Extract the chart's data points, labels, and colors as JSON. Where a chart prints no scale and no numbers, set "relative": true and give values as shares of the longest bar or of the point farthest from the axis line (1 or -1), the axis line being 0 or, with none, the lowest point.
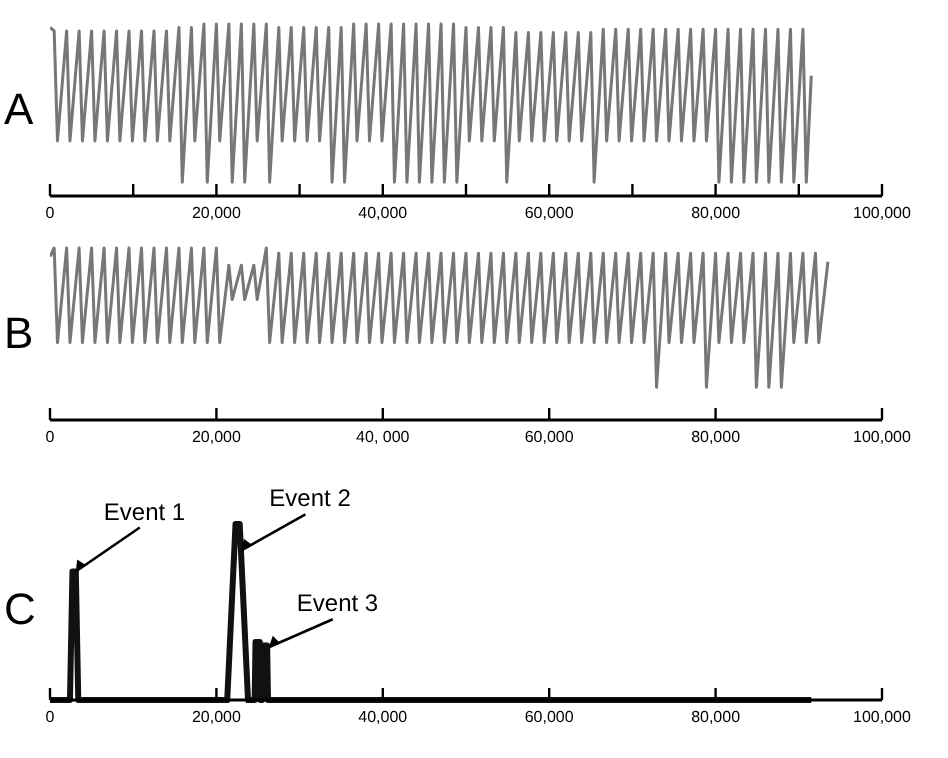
{
  "chart_data": [
    {
      "type": "line",
      "title": "A",
      "relative": true,
      "color": "#777777",
      "x": [
        0,
        500,
        900,
        2000,
        2400,
        3500,
        3900,
        5000,
        5400,
        6500,
        6900,
        8000,
        8400,
        9500,
        9900,
        11000,
        11400,
        12500,
        12900,
        14000,
        14400,
        15500,
        15900,
        17000,
        17400,
        18500,
        18900,
        20000,
        20400,
        21500,
        21900,
        23000,
        23400,
        24500,
        24900,
        26000,
        26400,
        27500,
        27900,
        29000,
        29400,
        30500,
        30900,
        32000,
        32400,
        33500,
        33900,
        35000,
        35400,
        36500,
        36900,
        38000,
        38400,
        39500,
        39900,
        41000,
        41400,
        42500,
        42900,
        44000,
        44400,
        45500,
        45900,
        47000,
        47400,
        48500,
        48900,
        50000,
        50400,
        51500,
        51900,
        53000,
        53400,
        54500,
        54900,
        56000,
        56400,
        57500,
        57900,
        59000,
        59400,
        60500,
        60900,
        62000,
        62400,
        63500,
        63900,
        65000,
        65400,
        66500,
        66900,
        68000,
        68400,
        69500,
        69900,
        71000,
        71400,
        72500,
        72900,
        74000,
        74400,
        75500,
        75900,
        77000,
        77400,
        78500,
        78900,
        80000,
        80400,
        81500,
        81900,
        83000,
        83400,
        84500,
        84900,
        86000,
        86400,
        87500,
        87900,
        89000,
        89400,
        90500,
        90900,
        91500
      ],
      "values": [
        0.98,
        0.96,
        0.32,
        0.96,
        0.32,
        0.96,
        0.32,
        0.96,
        0.32,
        0.96,
        0.32,
        0.96,
        0.32,
        0.96,
        0.32,
        0.96,
        0.32,
        0.96,
        0.32,
        0.96,
        0.32,
        0.98,
        0.08,
        0.98,
        0.32,
        1,
        0.08,
        1,
        0.32,
        1,
        0.08,
        1,
        0.08,
        1,
        0.32,
        1,
        0.08,
        0.98,
        0.32,
        0.98,
        0.32,
        0.98,
        0.32,
        0.98,
        0.32,
        0.98,
        0.08,
        0.98,
        0.08,
        1,
        0.32,
        1,
        0.32,
        1,
        0.32,
        1,
        0.08,
        1,
        0.08,
        1,
        0.08,
        1,
        0.08,
        1,
        0.08,
        1,
        0.08,
        0.98,
        0.32,
        0.98,
        0.32,
        0.98,
        0.32,
        0.98,
        0.08,
        0.95,
        0.32,
        0.95,
        0.32,
        0.95,
        0.32,
        0.95,
        0.32,
        0.95,
        0.32,
        0.95,
        0.32,
        0.95,
        0.08,
        0.97,
        0.32,
        0.97,
        0.32,
        0.97,
        0.32,
        0.97,
        0.32,
        0.97,
        0.32,
        0.97,
        0.32,
        0.97,
        0.32,
        0.97,
        0.32,
        0.97,
        0.32,
        0.97,
        0.08,
        0.97,
        0.08,
        0.97,
        0.08,
        0.97,
        0.08,
        0.97,
        0.08,
        0.97,
        0.08,
        0.97,
        0.08,
        0.97,
        0.08,
        0.7
      ],
      "xlim": [
        0,
        100000
      ],
      "xticks": [
        {
          "value": 0,
          "label": "0"
        },
        {
          "value": 10000,
          "label": null
        },
        {
          "value": 20000,
          "label": "20,000"
        },
        {
          "value": 30000,
          "label": null
        },
        {
          "value": 40000,
          "label": "40,000"
        },
        {
          "value": 50000,
          "label": null
        },
        {
          "value": 60000,
          "label": "60,000"
        },
        {
          "value": 70000,
          "label": null
        },
        {
          "value": 80000,
          "label": "80,000"
        },
        {
          "value": 90000,
          "label": null
        },
        {
          "value": 100000,
          "label": "100,000"
        }
      ]
    },
    {
      "type": "line",
      "title": "B",
      "relative": true,
      "color": "#777777",
      "x": [
        0,
        500,
        900,
        2000,
        2400,
        3500,
        3900,
        5000,
        5400,
        6500,
        6900,
        8000,
        8400,
        9500,
        9900,
        11000,
        11400,
        12500,
        12900,
        14000,
        14400,
        15500,
        15900,
        17000,
        17400,
        18500,
        18900,
        20000,
        20400,
        21500,
        21900,
        23000,
        23400,
        24500,
        24900,
        26000,
        26400,
        27500,
        27900,
        29000,
        29400,
        30500,
        30900,
        32000,
        32400,
        33500,
        33900,
        35000,
        35400,
        36500,
        36900,
        38000,
        38400,
        39500,
        39900,
        41000,
        41400,
        42500,
        42900,
        44000,
        44400,
        45500,
        45900,
        47000,
        47400,
        48500,
        48900,
        50000,
        50400,
        51500,
        51900,
        53000,
        53400,
        54500,
        54900,
        56000,
        56400,
        57500,
        57900,
        59000,
        59400,
        60500,
        60900,
        62000,
        62400,
        63500,
        63900,
        65000,
        65400,
        66500,
        66900,
        68000,
        68400,
        69500,
        69900,
        71000,
        71400,
        72500,
        72900,
        74000,
        74400,
        75500,
        75900,
        77000,
        77400,
        78500,
        78900,
        80000,
        80400,
        81500,
        81900,
        83000,
        83400,
        84500,
        84900,
        86000,
        86400,
        87500,
        87900,
        89000,
        89400,
        90500,
        90900,
        92000,
        92400,
        93500
      ],
      "values": [
        0.95,
        1,
        0.45,
        1,
        0.45,
        1,
        0.45,
        1,
        0.45,
        1,
        0.45,
        1,
        0.45,
        1,
        0.45,
        1,
        0.45,
        1,
        0.45,
        1,
        0.45,
        1,
        0.45,
        1,
        0.45,
        1,
        0.45,
        1,
        0.45,
        0.9,
        0.7,
        0.9,
        0.7,
        0.9,
        0.7,
        1,
        0.45,
        0.97,
        0.45,
        0.97,
        0.45,
        0.97,
        0.45,
        0.97,
        0.45,
        0.97,
        0.45,
        0.97,
        0.45,
        0.97,
        0.45,
        0.97,
        0.45,
        0.97,
        0.45,
        0.97,
        0.45,
        0.97,
        0.45,
        0.97,
        0.45,
        0.97,
        0.45,
        0.97,
        0.45,
        0.97,
        0.45,
        0.97,
        0.45,
        0.97,
        0.45,
        0.97,
        0.45,
        0.97,
        0.45,
        0.97,
        0.45,
        0.97,
        0.45,
        0.97,
        0.45,
        0.97,
        0.45,
        0.97,
        0.45,
        0.97,
        0.45,
        0.97,
        0.45,
        0.97,
        0.45,
        0.97,
        0.45,
        0.97,
        0.45,
        0.97,
        0.45,
        0.97,
        0.19,
        0.97,
        0.45,
        0.97,
        0.45,
        0.97,
        0.45,
        0.97,
        0.19,
        0.97,
        0.45,
        0.97,
        0.45,
        0.97,
        0.45,
        0.97,
        0.19,
        0.97,
        0.19,
        0.97,
        0.19,
        0.97,
        0.45,
        0.97,
        0.45,
        0.97,
        0.45,
        0.92
      ],
      "xlim": [
        0,
        100000
      ],
      "xticks": [
        {
          "value": 0,
          "label": "0"
        },
        {
          "value": 20000,
          "label": "20,000"
        },
        {
          "value": 40000,
          "label": "40, 000"
        },
        {
          "value": 60000,
          "label": "60,000"
        },
        {
          "value": 80000,
          "label": "80,000"
        },
        {
          "value": 100000,
          "label": "100,000"
        }
      ]
    },
    {
      "type": "line",
      "title": "C",
      "relative": true,
      "color": "#111111",
      "x": [
        0,
        2400,
        2700,
        3100,
        3400,
        21300,
        22300,
        22800,
        23800,
        24600,
        24700,
        25200,
        25300,
        25500,
        25600,
        26100,
        26200,
        91500
      ],
      "values": [
        0,
        0,
        0.73,
        0.73,
        0,
        0,
        1,
        1,
        0,
        0,
        0.33,
        0.33,
        0,
        0,
        0.31,
        0.31,
        0,
        0
      ],
      "xlim": [
        0,
        100000
      ],
      "xticks": [
        {
          "value": 0,
          "label": "0"
        },
        {
          "value": 20000,
          "label": "20,000"
        },
        {
          "value": 40000,
          "label": "40,000"
        },
        {
          "value": 60000,
          "label": "60,000"
        },
        {
          "value": 80000,
          "label": "80,000"
        },
        {
          "value": 100000,
          "label": "100,000"
        }
      ],
      "annotations": [
        {
          "text": "Event 1",
          "x": 3100,
          "y": 0.73
        },
        {
          "text": "Event 2",
          "x": 23000,
          "y": 0.85
        },
        {
          "text": "Event 3",
          "x": 26300,
          "y": 0.3
        }
      ]
    }
  ]
}
